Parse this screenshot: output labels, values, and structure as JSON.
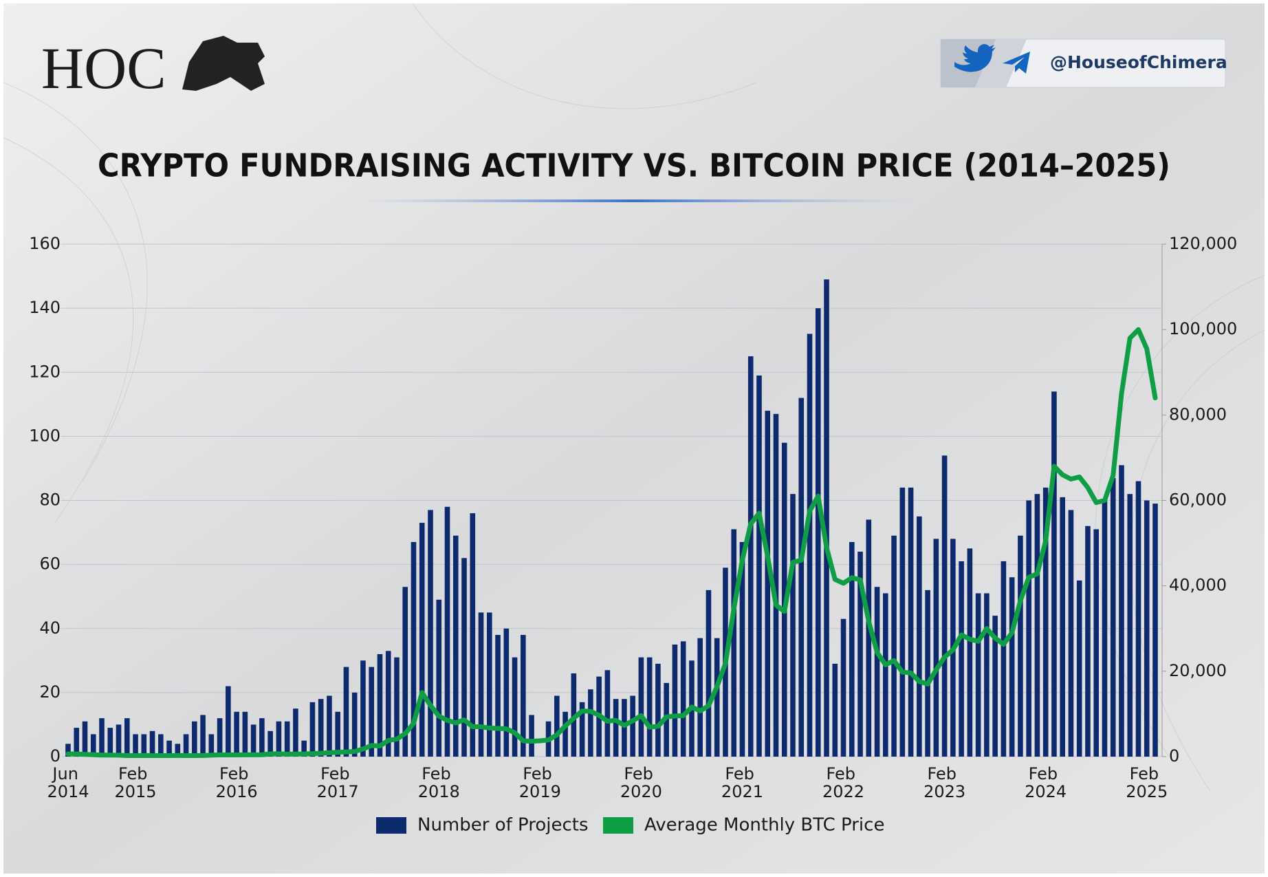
{
  "brand": {
    "logo": "HOC",
    "handle": "@HouseofChimera"
  },
  "chart_data": {
    "type": "bar",
    "title": "CRYPTO FUNDRAISING ACTIVITY VS. BITCOIN PRICE (2014–2025)",
    "categories": [
      "Jun 2014",
      null,
      null,
      null,
      null,
      null,
      null,
      null,
      "Feb 2015",
      null,
      null,
      null,
      null,
      null,
      null,
      null,
      null,
      null,
      null,
      null,
      "Feb 2016",
      null,
      null,
      null,
      null,
      null,
      null,
      null,
      null,
      null,
      null,
      null,
      "Feb 2017",
      null,
      null,
      null,
      null,
      null,
      null,
      null,
      null,
      null,
      null,
      null,
      "Feb 2018",
      null,
      null,
      null,
      null,
      null,
      null,
      null,
      null,
      null,
      null,
      null,
      "Feb 2019",
      null,
      null,
      null,
      null,
      null,
      null,
      null,
      null,
      null,
      null,
      null,
      "Feb 2020",
      null,
      null,
      null,
      null,
      null,
      null,
      null,
      null,
      null,
      null,
      null,
      "Feb 2021",
      null,
      null,
      null,
      null,
      null,
      null,
      null,
      null,
      null,
      null,
      null,
      "Feb 2022",
      null,
      null,
      null,
      null,
      null,
      null,
      null,
      null,
      null,
      null,
      null,
      "Feb 2023",
      null,
      null,
      null,
      null,
      null,
      null,
      null,
      null,
      null,
      null,
      null,
      "Feb 2024",
      null,
      null,
      null,
      null,
      null,
      null,
      null,
      null,
      null,
      null,
      null,
      "Feb 2025",
      null
    ],
    "series": [
      {
        "name": "Number of Projects",
        "type": "bar",
        "color": "#0d2a6e",
        "values": [
          4,
          9,
          11,
          7,
          12,
          9,
          10,
          12,
          7,
          7,
          8,
          7,
          5,
          4,
          7,
          11,
          13,
          7,
          12,
          22,
          14,
          14,
          10,
          12,
          8,
          11,
          11,
          15,
          5,
          17,
          18,
          19,
          14,
          28,
          20,
          30,
          28,
          32,
          33,
          31,
          53,
          67,
          73,
          77,
          49,
          78,
          69,
          62,
          76,
          45,
          45,
          38,
          40,
          31,
          38,
          13,
          0,
          11,
          19,
          14,
          26,
          17,
          21,
          25,
          27,
          18,
          18,
          19,
          31,
          31,
          29,
          23,
          35,
          36,
          30,
          37,
          52,
          37,
          59,
          71,
          67,
          125,
          119,
          108,
          107,
          98,
          82,
          112,
          132,
          140,
          149,
          29,
          43,
          67,
          64,
          74,
          53,
          51,
          69,
          84,
          84,
          75,
          52,
          68,
          94,
          68,
          61,
          65,
          51,
          51,
          44,
          61,
          56,
          69,
          80,
          82,
          84,
          114,
          81,
          77,
          55,
          72,
          71,
          80,
          87,
          91,
          82,
          86,
          80,
          79
        ]
      },
      {
        "name": "Average Monthly BTC Price",
        "type": "line",
        "color": "#0f9d45",
        "axis": "y2",
        "values": [
          620,
          620,
          530,
          450,
          360,
          370,
          340,
          250,
          240,
          270,
          240,
          235,
          240,
          280,
          250,
          235,
          265,
          350,
          430,
          410,
          400,
          415,
          430,
          450,
          640,
          670,
          580,
          600,
          630,
          710,
          780,
          910,
          1030,
          1100,
          1200,
          1800,
          2600,
          2500,
          3800,
          4100,
          5400,
          7800,
          15000,
          12000,
          9500,
          8500,
          7900,
          8600,
          7000,
          7000,
          6700,
          6600,
          6500,
          5600,
          3700,
          3600,
          3700,
          3900,
          5100,
          7200,
          9000,
          10700,
          10600,
          9700,
          8300,
          8500,
          7300,
          8400,
          9600,
          6900,
          7100,
          9300,
          9500,
          9600,
          11600,
          10700,
          11900,
          16400,
          21800,
          34600,
          46000,
          54500,
          57000,
          47000,
          35500,
          34000,
          45500,
          46000,
          57500,
          61000,
          49000,
          41500,
          40600,
          41900,
          41400,
          31700,
          24400,
          21500,
          22500,
          19800,
          19600,
          17600,
          17000,
          20300,
          23300,
          25000,
          28500,
          27500,
          27000,
          30000,
          27800,
          26300,
          29000,
          36500,
          42000,
          42800,
          50500,
          68000,
          66000,
          65000,
          65500,
          63000,
          59500,
          60000,
          65800,
          85000,
          98000,
          100000,
          95500,
          84000
        ]
      }
    ],
    "ylim": [
      0,
      160
    ],
    "yticks": [
      0,
      20,
      40,
      60,
      80,
      100,
      120,
      140,
      160
    ],
    "y2lim": [
      0,
      120000
    ],
    "y2ticks": [
      0,
      {
        "value": 20000,
        "label": "20,000"
      },
      {
        "value": 40000,
        "label": "40,000"
      },
      {
        "value": 60000,
        "label": "60,000"
      },
      {
        "value": 80000,
        "label": "80,000"
      },
      {
        "value": 100000,
        "label": "100,000"
      },
      {
        "value": 120000,
        "label": "120,000"
      }
    ],
    "grid": true,
    "legend": "bottom"
  }
}
